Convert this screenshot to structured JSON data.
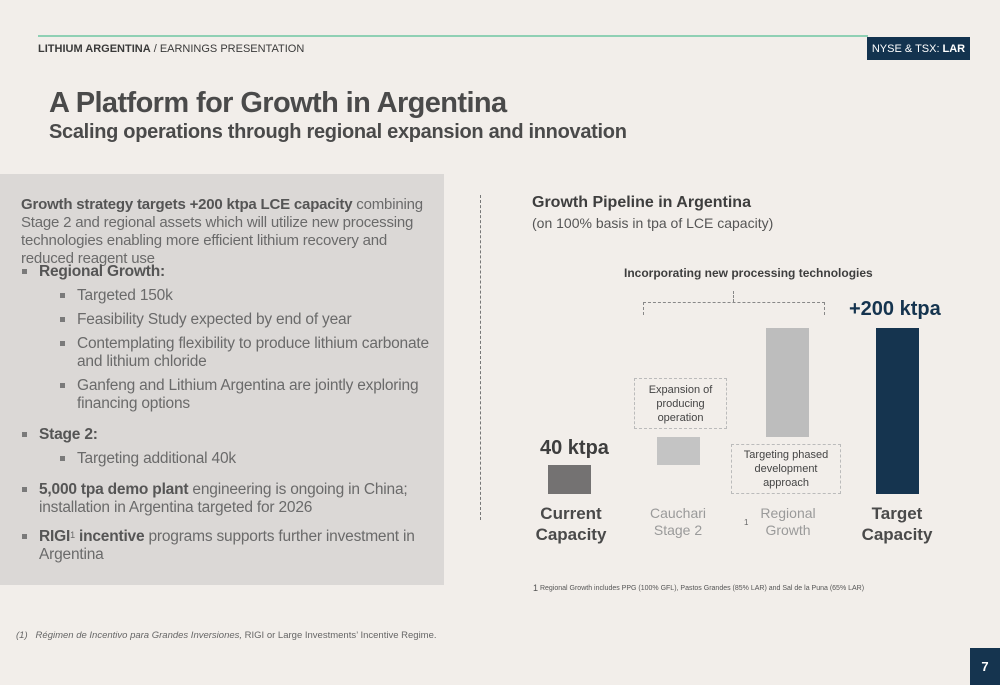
{
  "header": {
    "company": "LITHIUM ARGENTINA",
    "separator": " / ",
    "section": "EARNINGS PRESENTATION",
    "ticker_prefix": "NYSE & TSX:",
    "ticker_symbol": "LAR"
  },
  "slide": {
    "title": "A Platform for Growth in Argentina",
    "subtitle": "Scaling operations through regional expansion and innovation"
  },
  "left": {
    "intro_bold": "Growth strategy targets +200 ktpa LCE capacity",
    "intro_rest": " combining Stage 2 and regional assets which will utilize new processing technologies enabling more efficient lithium recovery and reduced reagent use",
    "b1_title": "Regional Growth:",
    "b1_sub1": "Targeted 150k",
    "b1_sub2": "Feasibility Study expected by end of year",
    "b1_sub3": "Contemplating flexibility to produce lithium carbonate and lithium chloride",
    "b1_sub4": "Ganfeng and Lithium Argentina are jointly exploring financing options",
    "b2_title": "Stage 2:",
    "b2_sub1": "Targeting additional 40k",
    "b3_bold": "5,000 tpa demo plant",
    "b3_rest": " engineering is ongoing in China; installation in Argentina targeted for 2026",
    "b4_bold": "RIGI",
    "b4_sup": "1",
    "b4_bold2": " incentive",
    "b4_rest": " programs supports further investment in Argentina"
  },
  "chart_data": {
    "type": "bar",
    "title": "Growth Pipeline in Argentina",
    "subtitle": "(on 100% basis in tpa of LCE capacity)",
    "annotation": "Incorporating new processing technologies",
    "categories": [
      "Current Capacity",
      "Cauchari Stage 2",
      "Regional Growth",
      "Target Capacity"
    ],
    "values": [
      40,
      40,
      150,
      200
    ],
    "value_labels": [
      "40 ktpa",
      "",
      "",
      "+200 ktpa"
    ],
    "callout_cauchari": "Expansion of producing operation",
    "callout_regional": "Targeting phased development approach",
    "label_current_1": "Current",
    "label_current_2": "Capacity",
    "label_cauchari_1": "Cauchari",
    "label_cauchari_2": "Stage 2",
    "label_regional_1": "Regional",
    "label_regional_2": "Growth",
    "label_regional_note": "1",
    "label_target_1": "Target",
    "label_target_2": "Capacity",
    "footnote_mark": "1",
    "footnote": " Regional Growth includes PPG (100% GFL), Pastos Grandes (85% LAR) and Sal de la Puna (65% LAR)",
    "colors": {
      "current": "#747272",
      "cauchari": "#c4c4c4",
      "regional": "#bdbdbd",
      "target": "#15344f"
    }
  },
  "footer": {
    "note_num": "(1)",
    "note_italic": "Régimen de Incentivo para Grandes Inversiones,",
    "note_rest": " RIGI or Large Investments’ Incentive Regime.",
    "page": "7"
  }
}
